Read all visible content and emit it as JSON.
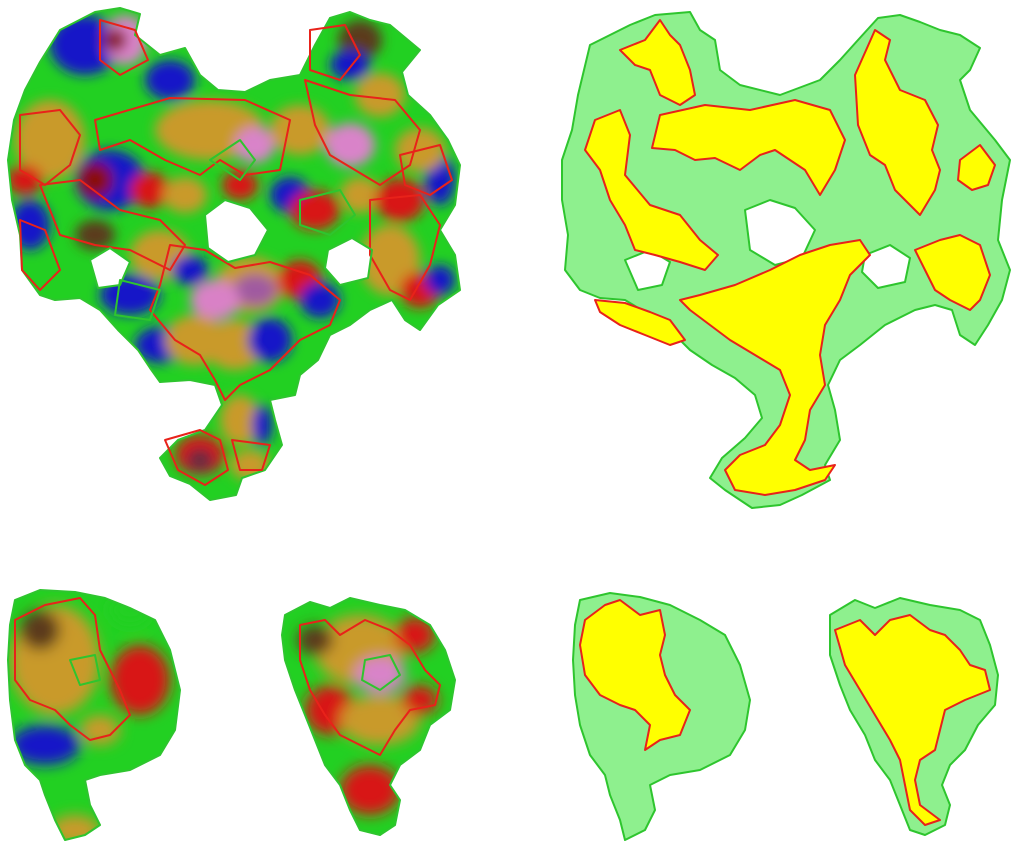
{
  "figure": {
    "panels": [
      {
        "name": "full-surface-texture",
        "style": "textured"
      },
      {
        "name": "full-surface-segmentation",
        "style": "flat"
      },
      {
        "name": "left-part-texture",
        "style": "textured"
      },
      {
        "name": "right-part-texture",
        "style": "textured"
      },
      {
        "name": "left-part-segmentation",
        "style": "flat"
      },
      {
        "name": "right-part-segmentation",
        "style": "flat"
      }
    ],
    "colors": {
      "green": "#22d022",
      "light_green": "#8ef08e",
      "yellow": "#ffff00",
      "outline_red": "#e8221a",
      "outline_green": "#2ec52e",
      "blue": "#1616c8",
      "red": "#d81414",
      "pink": "#d983c9",
      "ochre": "#c99a2a",
      "dark_brown": "#5b3a1a"
    }
  }
}
